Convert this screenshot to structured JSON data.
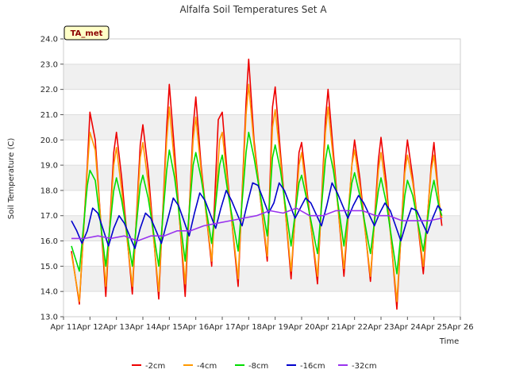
{
  "chart_data": {
    "type": "line",
    "title": "Alfalfa Soil Temperatures Set A",
    "xlabel": "Time",
    "ylabel": "Soil Temperature (C)",
    "site_label": "TA_met",
    "ylim": [
      13.0,
      24.0
    ],
    "xlim_days": [
      11,
      26
    ],
    "y_ticks": [
      "13.0",
      "14.0",
      "15.0",
      "16.0",
      "17.0",
      "18.0",
      "19.0",
      "20.0",
      "21.0",
      "22.0",
      "23.0",
      "24.0"
    ],
    "x_ticks": [
      "Apr 11",
      "Apr 12",
      "Apr 13",
      "Apr 14",
      "Apr 15",
      "Apr 16",
      "Apr 17",
      "Apr 18",
      "Apr 19",
      "Apr 20",
      "Apr 21",
      "Apr 22",
      "Apr 23",
      "Apr 24",
      "Apr 25",
      "Apr 26"
    ],
    "x_tick_days": [
      11,
      12,
      13,
      14,
      15,
      16,
      17,
      18,
      19,
      20,
      21,
      22,
      23,
      24,
      25,
      26
    ],
    "grid_bands": true,
    "series": [
      {
        "name": "-2cm",
        "color": "#ee0000",
        "points": [
          [
            11.3,
            15.6
          ],
          [
            11.6,
            13.5
          ],
          [
            11.9,
            19.0
          ],
          [
            12.0,
            21.1
          ],
          [
            12.2,
            20.0
          ],
          [
            12.6,
            13.8
          ],
          [
            12.9,
            19.5
          ],
          [
            13.0,
            20.3
          ],
          [
            13.2,
            18.5
          ],
          [
            13.6,
            13.9
          ],
          [
            13.9,
            19.8
          ],
          [
            14.0,
            20.6
          ],
          [
            14.2,
            18.8
          ],
          [
            14.6,
            13.7
          ],
          [
            14.9,
            20.5
          ],
          [
            15.0,
            22.2
          ],
          [
            15.2,
            19.5
          ],
          [
            15.6,
            13.8
          ],
          [
            15.9,
            20.5
          ],
          [
            16.0,
            21.7
          ],
          [
            16.2,
            19.0
          ],
          [
            16.6,
            15.0
          ],
          [
            16.85,
            20.8
          ],
          [
            17.0,
            21.1
          ],
          [
            17.2,
            18.5
          ],
          [
            17.6,
            14.2
          ],
          [
            17.9,
            21.5
          ],
          [
            18.0,
            23.2
          ],
          [
            18.2,
            20.0
          ],
          [
            18.7,
            15.2
          ],
          [
            18.9,
            21.3
          ],
          [
            19.0,
            22.1
          ],
          [
            19.2,
            19.5
          ],
          [
            19.6,
            14.5
          ],
          [
            19.9,
            19.5
          ],
          [
            20.0,
            19.9
          ],
          [
            20.2,
            18.0
          ],
          [
            20.6,
            14.3
          ],
          [
            20.9,
            20.8
          ],
          [
            21.0,
            22.0
          ],
          [
            21.2,
            19.5
          ],
          [
            21.6,
            14.6
          ],
          [
            21.9,
            19.0
          ],
          [
            22.0,
            20.0
          ],
          [
            22.2,
            18.5
          ],
          [
            22.6,
            14.4
          ],
          [
            22.9,
            19.2
          ],
          [
            23.0,
            20.1
          ],
          [
            23.2,
            18.3
          ],
          [
            23.6,
            13.3
          ],
          [
            23.9,
            19.0
          ],
          [
            24.0,
            20.0
          ],
          [
            24.2,
            18.5
          ],
          [
            24.6,
            14.7
          ],
          [
            24.9,
            19.0
          ],
          [
            25.0,
            19.9
          ],
          [
            25.2,
            17.5
          ],
          [
            25.3,
            16.6
          ]
        ]
      },
      {
        "name": "-4cm",
        "color": "#ff9900",
        "points": [
          [
            11.3,
            15.5
          ],
          [
            11.6,
            13.6
          ],
          [
            11.9,
            18.8
          ],
          [
            12.0,
            20.3
          ],
          [
            12.2,
            19.6
          ],
          [
            12.6,
            14.2
          ],
          [
            12.9,
            19.0
          ],
          [
            13.0,
            19.7
          ],
          [
            13.2,
            18.0
          ],
          [
            13.6,
            14.2
          ],
          [
            13.9,
            19.3
          ],
          [
            14.0,
            19.9
          ],
          [
            14.2,
            18.3
          ],
          [
            14.6,
            14.0
          ],
          [
            14.9,
            20.0
          ],
          [
            15.0,
            21.3
          ],
          [
            15.2,
            19.0
          ],
          [
            15.6,
            14.3
          ],
          [
            15.9,
            20.0
          ],
          [
            16.0,
            20.9
          ],
          [
            16.2,
            18.8
          ],
          [
            16.6,
            15.2
          ],
          [
            16.9,
            20.0
          ],
          [
            17.0,
            20.3
          ],
          [
            17.2,
            18.3
          ],
          [
            17.6,
            14.5
          ],
          [
            17.9,
            21.0
          ],
          [
            18.0,
            22.2
          ],
          [
            18.2,
            19.8
          ],
          [
            18.7,
            15.4
          ],
          [
            18.9,
            20.5
          ],
          [
            19.0,
            21.2
          ],
          [
            19.2,
            19.2
          ],
          [
            19.6,
            14.8
          ],
          [
            19.9,
            19.0
          ],
          [
            20.0,
            19.5
          ],
          [
            20.2,
            17.8
          ],
          [
            20.6,
            14.6
          ],
          [
            20.9,
            20.3
          ],
          [
            21.0,
            21.3
          ],
          [
            21.2,
            19.2
          ],
          [
            21.6,
            14.9
          ],
          [
            21.9,
            19.0
          ],
          [
            22.0,
            19.6
          ],
          [
            22.2,
            18.2
          ],
          [
            22.6,
            14.6
          ],
          [
            22.9,
            18.8
          ],
          [
            23.0,
            19.5
          ],
          [
            23.2,
            18.0
          ],
          [
            23.6,
            13.6
          ],
          [
            23.9,
            18.7
          ],
          [
            24.0,
            19.4
          ],
          [
            24.2,
            18.3
          ],
          [
            24.6,
            15.0
          ],
          [
            24.9,
            18.8
          ],
          [
            25.0,
            19.4
          ],
          [
            25.2,
            17.5
          ],
          [
            25.3,
            16.9
          ]
        ]
      },
      {
        "name": "-8cm",
        "color": "#00dd00",
        "points": [
          [
            11.3,
            15.8
          ],
          [
            11.6,
            14.8
          ],
          [
            11.9,
            18.2
          ],
          [
            12.0,
            18.8
          ],
          [
            12.2,
            18.4
          ],
          [
            12.6,
            15.0
          ],
          [
            12.9,
            18.0
          ],
          [
            13.0,
            18.5
          ],
          [
            13.2,
            17.6
          ],
          [
            13.6,
            15.0
          ],
          [
            13.9,
            18.2
          ],
          [
            14.0,
            18.6
          ],
          [
            14.2,
            17.7
          ],
          [
            14.6,
            15.0
          ],
          [
            14.9,
            18.8
          ],
          [
            15.0,
            19.6
          ],
          [
            15.2,
            18.5
          ],
          [
            15.6,
            15.2
          ],
          [
            15.9,
            19.0
          ],
          [
            16.0,
            19.5
          ],
          [
            16.2,
            18.5
          ],
          [
            16.6,
            15.9
          ],
          [
            16.9,
            19.0
          ],
          [
            17.0,
            19.4
          ],
          [
            17.2,
            18.0
          ],
          [
            17.6,
            15.6
          ],
          [
            17.9,
            19.5
          ],
          [
            18.0,
            20.3
          ],
          [
            18.2,
            19.3
          ],
          [
            18.7,
            16.2
          ],
          [
            18.9,
            19.3
          ],
          [
            19.0,
            19.8
          ],
          [
            19.2,
            18.8
          ],
          [
            19.6,
            15.8
          ],
          [
            19.9,
            18.3
          ],
          [
            20.0,
            18.6
          ],
          [
            20.2,
            17.6
          ],
          [
            20.6,
            15.5
          ],
          [
            20.9,
            19.2
          ],
          [
            21.0,
            19.8
          ],
          [
            21.2,
            18.8
          ],
          [
            21.6,
            15.8
          ],
          [
            21.9,
            18.3
          ],
          [
            22.0,
            18.7
          ],
          [
            22.2,
            17.8
          ],
          [
            22.6,
            15.5
          ],
          [
            22.9,
            18.0
          ],
          [
            23.0,
            18.5
          ],
          [
            23.2,
            17.5
          ],
          [
            23.6,
            14.7
          ],
          [
            23.9,
            17.8
          ],
          [
            24.0,
            18.4
          ],
          [
            24.2,
            17.8
          ],
          [
            24.6,
            15.6
          ],
          [
            24.9,
            17.9
          ],
          [
            25.0,
            18.4
          ],
          [
            25.2,
            17.3
          ],
          [
            25.3,
            17.0
          ]
        ]
      },
      {
        "name": "-16cm",
        "color": "#0000cc",
        "points": [
          [
            11.3,
            16.8
          ],
          [
            11.5,
            16.4
          ],
          [
            11.7,
            15.9
          ],
          [
            11.9,
            16.4
          ],
          [
            12.1,
            17.3
          ],
          [
            12.3,
            17.1
          ],
          [
            12.7,
            15.8
          ],
          [
            12.9,
            16.5
          ],
          [
            13.1,
            17.0
          ],
          [
            13.3,
            16.7
          ],
          [
            13.7,
            15.7
          ],
          [
            13.9,
            16.5
          ],
          [
            14.1,
            17.1
          ],
          [
            14.3,
            16.9
          ],
          [
            14.7,
            15.9
          ],
          [
            14.9,
            16.7
          ],
          [
            15.15,
            17.7
          ],
          [
            15.35,
            17.4
          ],
          [
            15.75,
            16.2
          ],
          [
            15.95,
            17.1
          ],
          [
            16.15,
            17.9
          ],
          [
            16.35,
            17.6
          ],
          [
            16.75,
            16.5
          ],
          [
            16.95,
            17.3
          ],
          [
            17.15,
            18.0
          ],
          [
            17.35,
            17.6
          ],
          [
            17.75,
            16.6
          ],
          [
            17.95,
            17.5
          ],
          [
            18.15,
            18.3
          ],
          [
            18.35,
            18.2
          ],
          [
            18.75,
            17.1
          ],
          [
            18.95,
            17.5
          ],
          [
            19.15,
            18.3
          ],
          [
            19.35,
            18.0
          ],
          [
            19.75,
            16.9
          ],
          [
            19.95,
            17.3
          ],
          [
            20.15,
            17.7
          ],
          [
            20.35,
            17.5
          ],
          [
            20.75,
            16.6
          ],
          [
            20.95,
            17.4
          ],
          [
            21.15,
            18.3
          ],
          [
            21.35,
            17.9
          ],
          [
            21.75,
            16.9
          ],
          [
            21.95,
            17.4
          ],
          [
            22.15,
            17.8
          ],
          [
            22.35,
            17.5
          ],
          [
            22.75,
            16.6
          ],
          [
            22.95,
            17.1
          ],
          [
            23.15,
            17.5
          ],
          [
            23.35,
            17.2
          ],
          [
            23.75,
            16.0
          ],
          [
            23.95,
            16.7
          ],
          [
            24.15,
            17.3
          ],
          [
            24.35,
            17.2
          ],
          [
            24.75,
            16.3
          ],
          [
            24.95,
            16.9
          ],
          [
            25.15,
            17.4
          ],
          [
            25.3,
            17.2
          ]
        ]
      },
      {
        "name": "-32cm",
        "color": "#9933ee",
        "points": [
          [
            11.3,
            16.1
          ],
          [
            11.8,
            16.1
          ],
          [
            12.3,
            16.2
          ],
          [
            12.8,
            16.1
          ],
          [
            13.3,
            16.2
          ],
          [
            13.8,
            16.0
          ],
          [
            14.3,
            16.2
          ],
          [
            14.8,
            16.2
          ],
          [
            15.3,
            16.4
          ],
          [
            15.8,
            16.4
          ],
          [
            16.3,
            16.6
          ],
          [
            16.8,
            16.7
          ],
          [
            17.3,
            16.8
          ],
          [
            17.8,
            16.9
          ],
          [
            18.3,
            17.0
          ],
          [
            18.8,
            17.2
          ],
          [
            19.3,
            17.1
          ],
          [
            19.8,
            17.3
          ],
          [
            20.3,
            17.0
          ],
          [
            20.8,
            17.0
          ],
          [
            21.3,
            17.2
          ],
          [
            21.8,
            17.2
          ],
          [
            22.3,
            17.2
          ],
          [
            22.8,
            17.0
          ],
          [
            23.3,
            17.0
          ],
          [
            23.8,
            16.8
          ],
          [
            24.3,
            16.8
          ],
          [
            24.8,
            16.8
          ],
          [
            25.3,
            16.9
          ]
        ]
      }
    ]
  }
}
